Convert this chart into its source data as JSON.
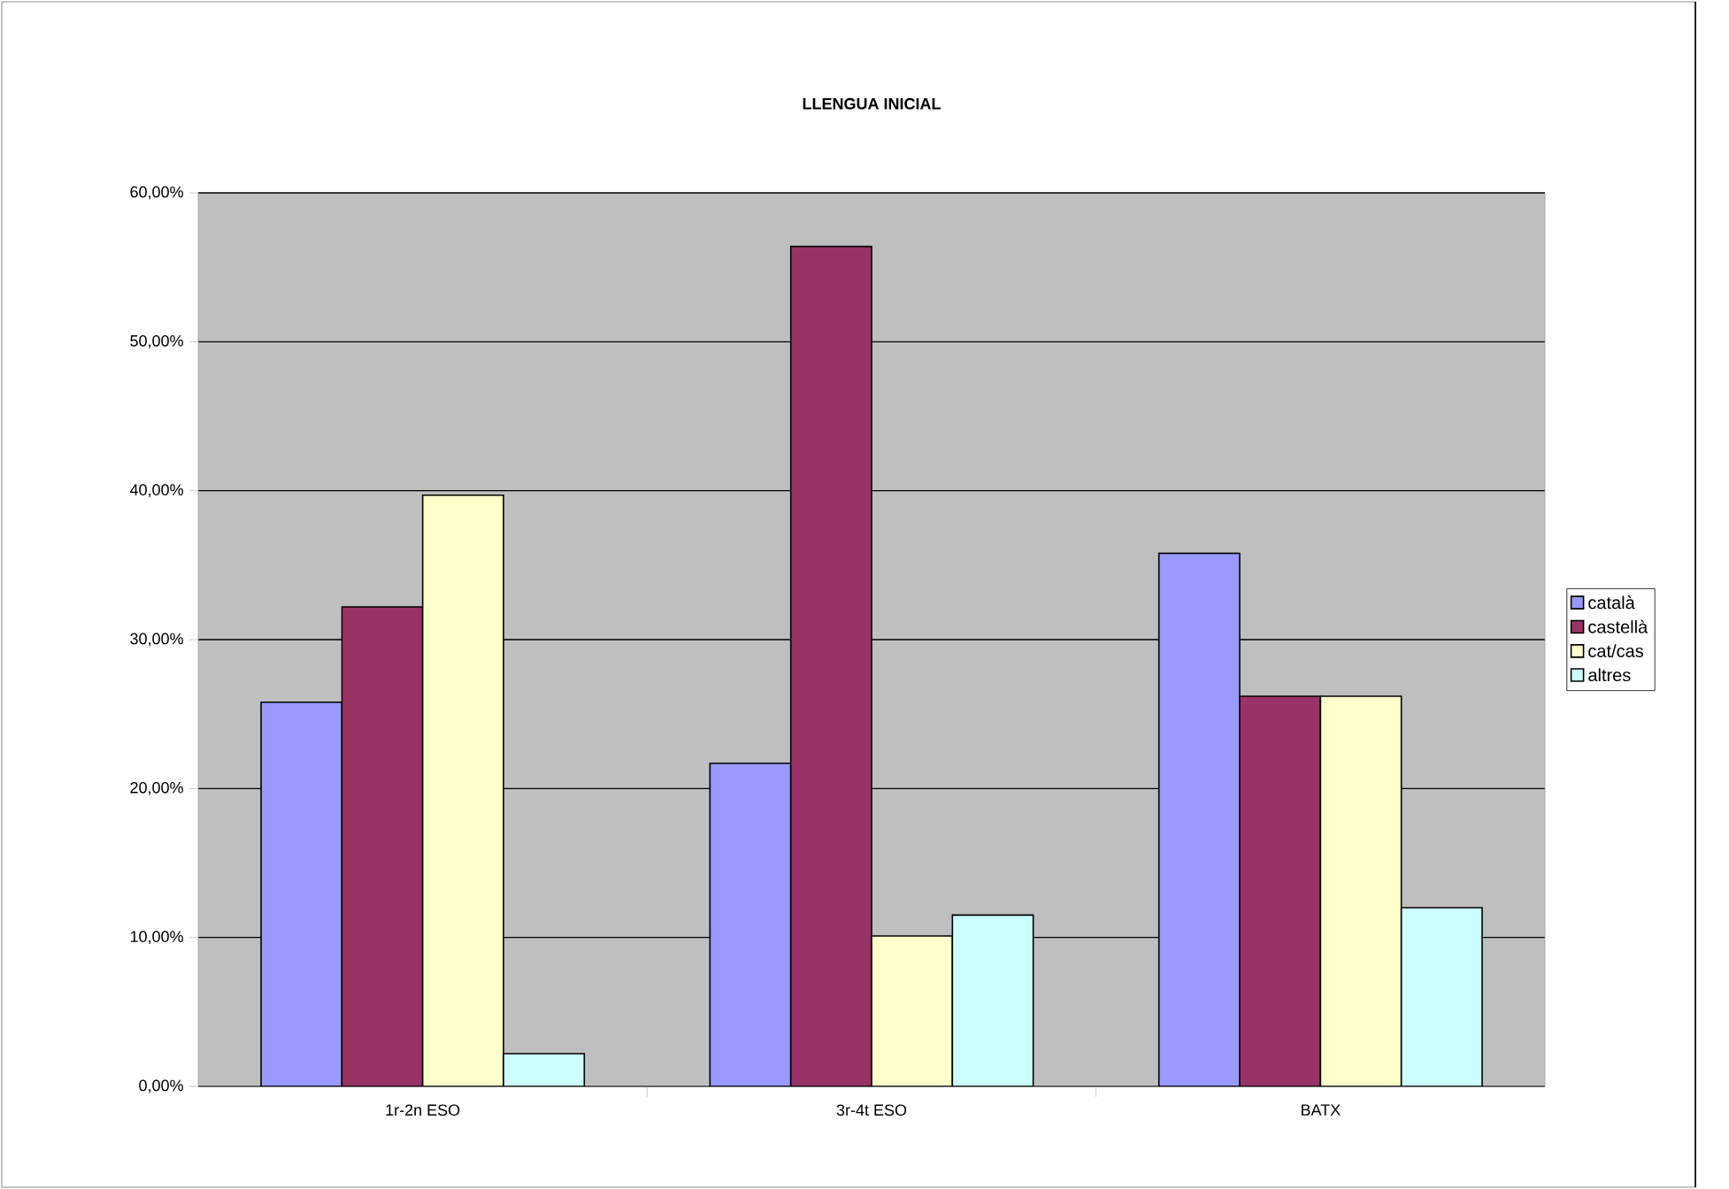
{
  "chart_data": {
    "type": "bar",
    "title": "LLENGUA INICIAL",
    "categories": [
      "1r-2n ESO",
      "3r-4t ESO",
      "BATX"
    ],
    "series": [
      {
        "name": "català",
        "color": "#9999ff",
        "values": [
          25.8,
          21.7,
          35.8
        ]
      },
      {
        "name": "castellà",
        "color": "#993366",
        "values": [
          32.2,
          56.4,
          26.2
        ]
      },
      {
        "name": "cat/cas",
        "color": "#ffffcc",
        "values": [
          39.7,
          10.1,
          26.2
        ]
      },
      {
        "name": "altres",
        "color": "#ccffff",
        "values": [
          2.2,
          11.5,
          12.0
        ]
      }
    ],
    "ylim": [
      0,
      60
    ],
    "yticks": [
      {
        "value": 0,
        "label": "0,00%"
      },
      {
        "value": 10,
        "label": "10,00%"
      },
      {
        "value": 20,
        "label": "20,00%"
      },
      {
        "value": 30,
        "label": "30,00%"
      },
      {
        "value": 40,
        "label": "40,00%"
      },
      {
        "value": 50,
        "label": "50,00%"
      },
      {
        "value": 60,
        "label": "60,00%"
      }
    ],
    "grid": "y",
    "legend": "right"
  }
}
